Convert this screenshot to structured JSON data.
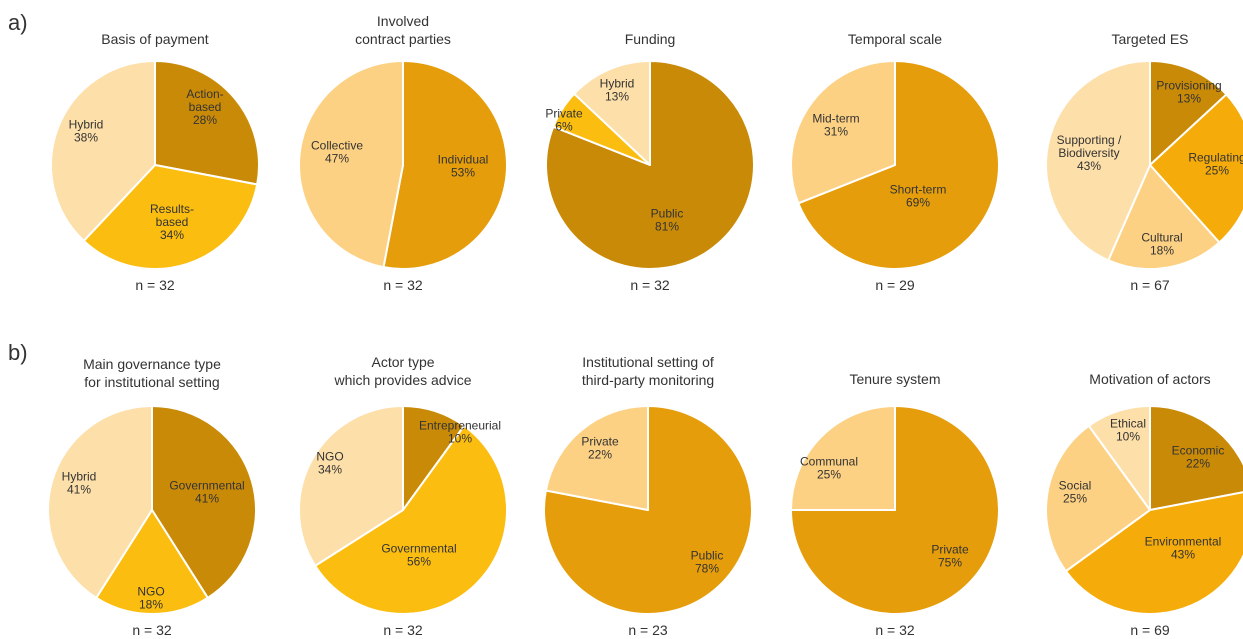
{
  "panels": {
    "a": "a)",
    "b": "b)"
  },
  "colors": {
    "dark": "#c98a08",
    "orange": "#e59d0b",
    "amber": "#f5ac0a",
    "gold": "#fbbd0f",
    "light": "#fdd183",
    "pale": "#fddfa9"
  },
  "chart_data": [
    {
      "type": "pie",
      "title": [
        "Basis of payment"
      ],
      "n": "n = 32",
      "slices": [
        {
          "lines": [
            "Action-",
            "based",
            "28%"
          ],
          "value": 28,
          "color": "#c98a08"
        },
        {
          "lines": [
            "Results-",
            "based",
            "34%"
          ],
          "value": 34,
          "color": "#fbbd0f"
        },
        {
          "lines": [
            "Hybrid",
            "38%"
          ],
          "value": 38,
          "color": "#fddfa9"
        }
      ]
    },
    {
      "type": "pie",
      "title": [
        "Involved",
        "contract parties"
      ],
      "n": "n = 32",
      "slices": [
        {
          "lines": [
            "Individual",
            "53%"
          ],
          "value": 53,
          "color": "#e59d0b"
        },
        {
          "lines": [
            "Collective",
            "47%"
          ],
          "value": 47,
          "color": "#fdd183"
        }
      ]
    },
    {
      "type": "pie",
      "title": [
        "Funding"
      ],
      "n": "n = 32",
      "slices": [
        {
          "lines": [
            "Public",
            "81%"
          ],
          "value": 81,
          "color": "#c98a08"
        },
        {
          "lines": [
            "Private",
            "6%"
          ],
          "value": 6,
          "color": "#fbbd0f"
        },
        {
          "lines": [
            "Hybrid",
            "13%"
          ],
          "value": 13,
          "color": "#fddfa9"
        }
      ]
    },
    {
      "type": "pie",
      "title": [
        "Temporal scale"
      ],
      "n": "n = 29",
      "slices": [
        {
          "lines": [
            "Short-term",
            "69%"
          ],
          "value": 69,
          "color": "#e59d0b"
        },
        {
          "lines": [
            "Mid-term",
            "31%"
          ],
          "value": 31,
          "color": "#fdd183"
        }
      ]
    },
    {
      "type": "pie",
      "title": [
        "Targeted ES"
      ],
      "n": "n = 67",
      "slices": [
        {
          "lines": [
            "Provisioning",
            "13%"
          ],
          "value": 13,
          "color": "#c98a08"
        },
        {
          "lines": [
            "Regulating",
            "25%"
          ],
          "value": 25,
          "color": "#f5ac0a"
        },
        {
          "lines": [
            "Cultural",
            "18%"
          ],
          "value": 18,
          "color": "#fdd183"
        },
        {
          "lines": [
            "Supporting /",
            "Biodiversity",
            "43%"
          ],
          "value": 43,
          "color": "#fddfa9"
        }
      ]
    },
    {
      "type": "pie",
      "title": [
        "Main governance type",
        "for institutional setting"
      ],
      "n": "n = 32",
      "slices": [
        {
          "lines": [
            "Governmental",
            "41%"
          ],
          "value": 41,
          "color": "#c98a08"
        },
        {
          "lines": [
            "NGO",
            "18%"
          ],
          "value": 18,
          "color": "#fbbd0f"
        },
        {
          "lines": [
            "Hybrid",
            "41%"
          ],
          "value": 41,
          "color": "#fddfa9"
        }
      ]
    },
    {
      "type": "pie",
      "title": [
        "Actor type",
        "which provides advice"
      ],
      "n": "n = 32",
      "slices": [
        {
          "lines": [
            "Entrepreneurial",
            "10%"
          ],
          "value": 10,
          "color": "#c98a08"
        },
        {
          "lines": [
            "Governmental",
            "56%"
          ],
          "value": 56,
          "color": "#fbbd0f"
        },
        {
          "lines": [
            "NGO",
            "34%"
          ],
          "value": 34,
          "color": "#fddfa9"
        }
      ]
    },
    {
      "type": "pie",
      "title": [
        "Institutional setting of",
        "third-party monitoring"
      ],
      "n": "n = 23",
      "slices": [
        {
          "lines": [
            "Public",
            "78%"
          ],
          "value": 78,
          "color": "#e59d0b"
        },
        {
          "lines": [
            "Private",
            "22%"
          ],
          "value": 22,
          "color": "#fdd183"
        }
      ]
    },
    {
      "type": "pie",
      "title": [
        "Tenure system"
      ],
      "n": "n = 32",
      "slices": [
        {
          "lines": [
            "Private",
            "75%"
          ],
          "value": 75,
          "color": "#e59d0b"
        },
        {
          "lines": [
            "Communal",
            "25%"
          ],
          "value": 25,
          "color": "#fdd183"
        }
      ]
    },
    {
      "type": "pie",
      "title": [
        "Motivation of actors"
      ],
      "n": "n = 69",
      "slices": [
        {
          "lines": [
            "Economic",
            "22%"
          ],
          "value": 22,
          "color": "#c98a08"
        },
        {
          "lines": [
            "Environmental",
            "43%"
          ],
          "value": 43,
          "color": "#f5ac0a"
        },
        {
          "lines": [
            "Social",
            "25%"
          ],
          "value": 25,
          "color": "#fdd183"
        },
        {
          "lines": [
            "Ethical",
            "10%"
          ],
          "value": 10,
          "color": "#fddfa9"
        }
      ]
    }
  ]
}
